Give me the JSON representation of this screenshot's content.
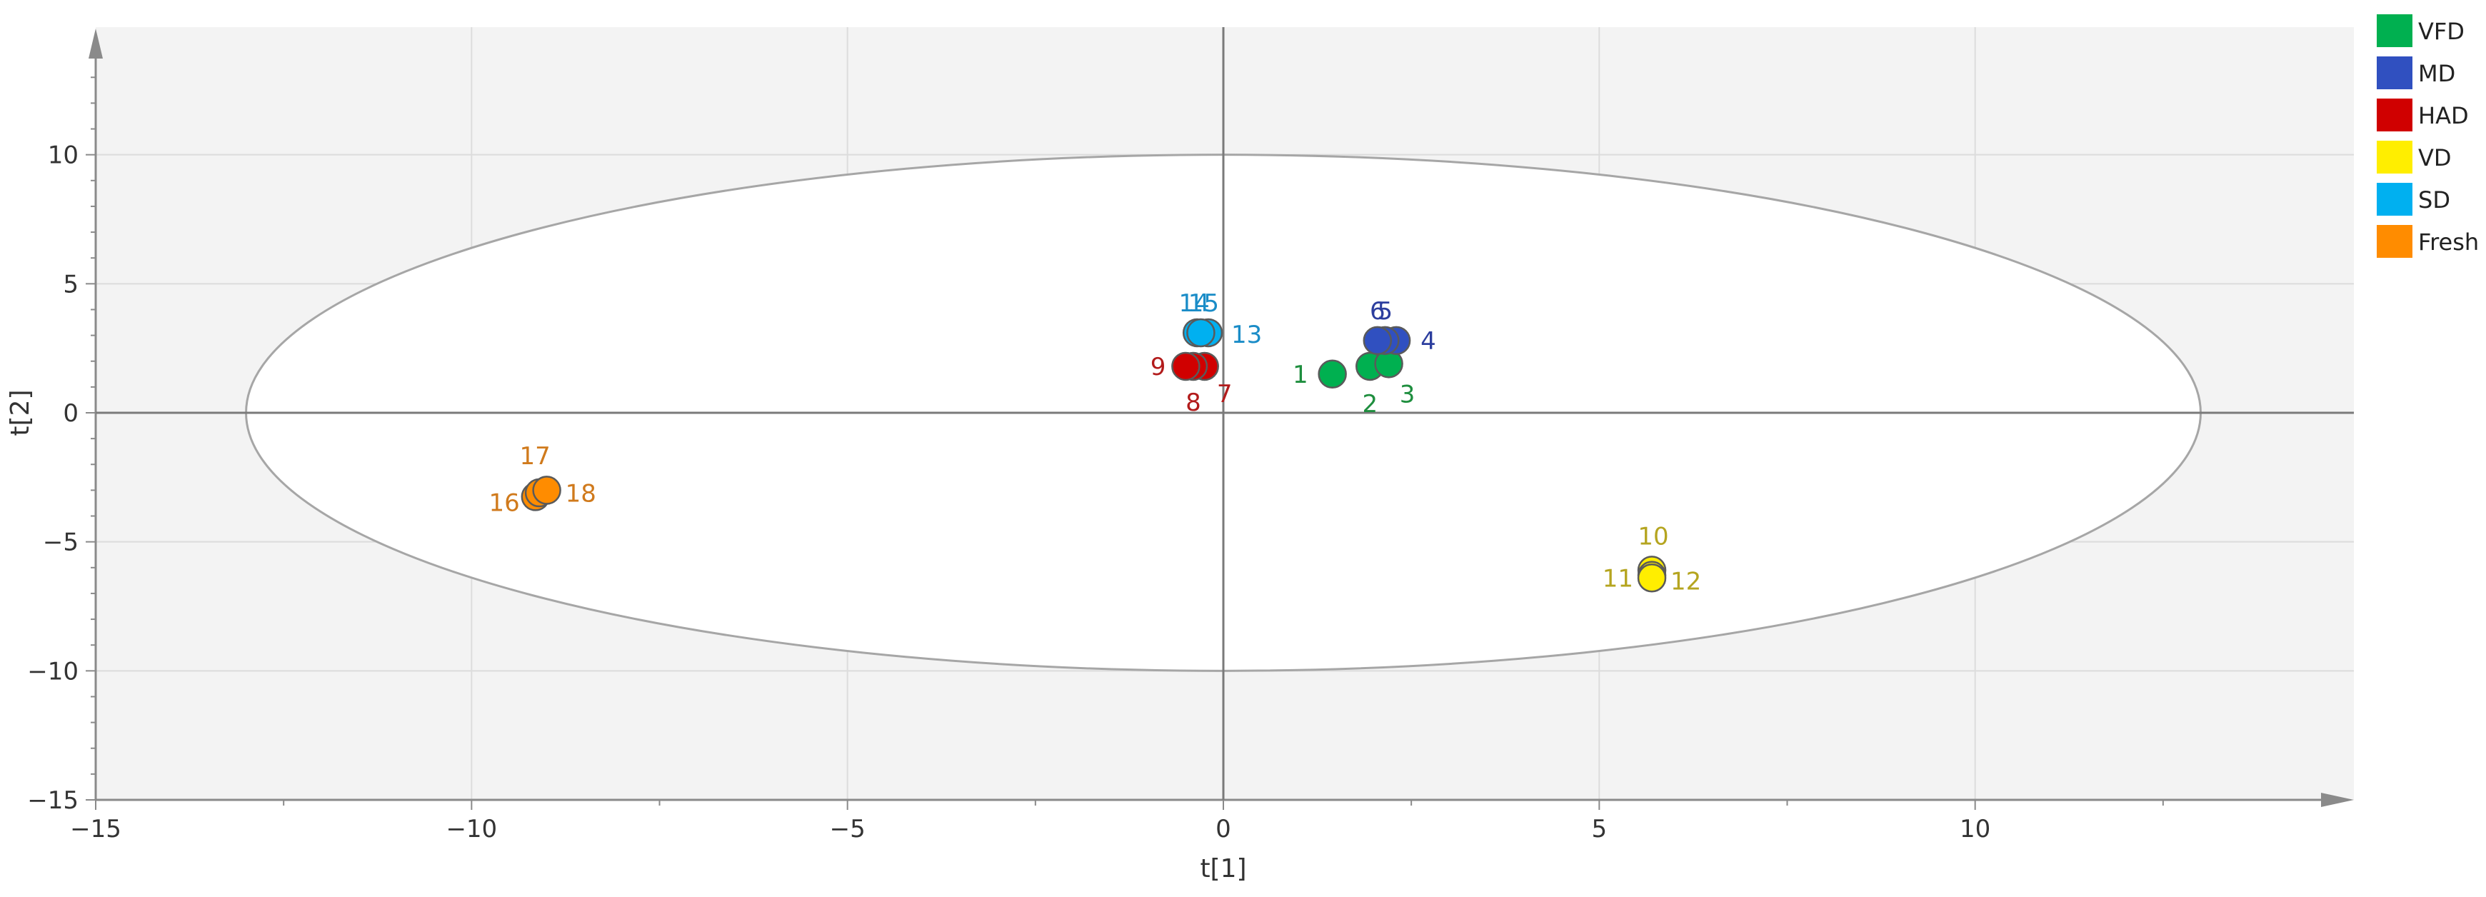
{
  "chart_data": {
    "type": "scatter",
    "title": "",
    "xlabel": "t[1]",
    "ylabel": "t[2]",
    "xlim": [
      -15,
      15
    ],
    "ylim": [
      -15,
      15
    ],
    "xticks": [
      -15,
      -10,
      -5,
      0,
      5,
      10
    ],
    "yticks": [
      -15,
      -10,
      -5,
      0,
      5,
      10
    ],
    "grid": true,
    "confidence_ellipse": {
      "center": [
        0,
        0
      ],
      "semi_axis_x": 13,
      "semi_axis_y": 10
    },
    "legend_position": "top-right",
    "series": [
      {
        "name": "VFD",
        "color": "#00b050",
        "label_color": "#1e8e3e",
        "points": [
          {
            "label": "1",
            "x": 1.45,
            "y": 1.5
          },
          {
            "label": "2",
            "x": 1.95,
            "y": 1.8
          },
          {
            "label": "3",
            "x": 2.2,
            "y": 1.9
          }
        ]
      },
      {
        "name": "MD",
        "color": "#3050c0",
        "label_color": "#2c3e9e",
        "points": [
          {
            "label": "4",
            "x": 2.3,
            "y": 2.8
          },
          {
            "label": "5",
            "x": 2.15,
            "y": 2.8
          },
          {
            "label": "6",
            "x": 2.05,
            "y": 2.8
          }
        ]
      },
      {
        "name": "HAD",
        "color": "#d00000",
        "label_color": "#b21b1b",
        "points": [
          {
            "label": "7",
            "x": -0.25,
            "y": 1.8
          },
          {
            "label": "8",
            "x": -0.4,
            "y": 1.8
          },
          {
            "label": "9",
            "x": -0.5,
            "y": 1.8
          }
        ]
      },
      {
        "name": "VD",
        "color": "#ffee00",
        "label_color": "#b5a520",
        "points": [
          {
            "label": "10",
            "x": 5.7,
            "y": -6.1
          },
          {
            "label": "11",
            "x": 5.7,
            "y": -6.3
          },
          {
            "label": "12",
            "x": 5.7,
            "y": -6.4
          }
        ]
      },
      {
        "name": "SD",
        "color": "#00b0f0",
        "label_color": "#1a8cc7",
        "points": [
          {
            "label": "13",
            "x": -0.2,
            "y": 3.1
          },
          {
            "label": "14",
            "x": -0.35,
            "y": 3.1
          },
          {
            "label": "15",
            "x": -0.3,
            "y": 3.1
          }
        ]
      },
      {
        "name": "Fresh",
        "color": "#ff8c00",
        "label_color": "#d07a1c",
        "points": [
          {
            "label": "16",
            "x": -9.15,
            "y": -3.25
          },
          {
            "label": "17",
            "x": -9.1,
            "y": -3.1
          },
          {
            "label": "18",
            "x": -9.0,
            "y": -3.0
          }
        ]
      }
    ]
  }
}
